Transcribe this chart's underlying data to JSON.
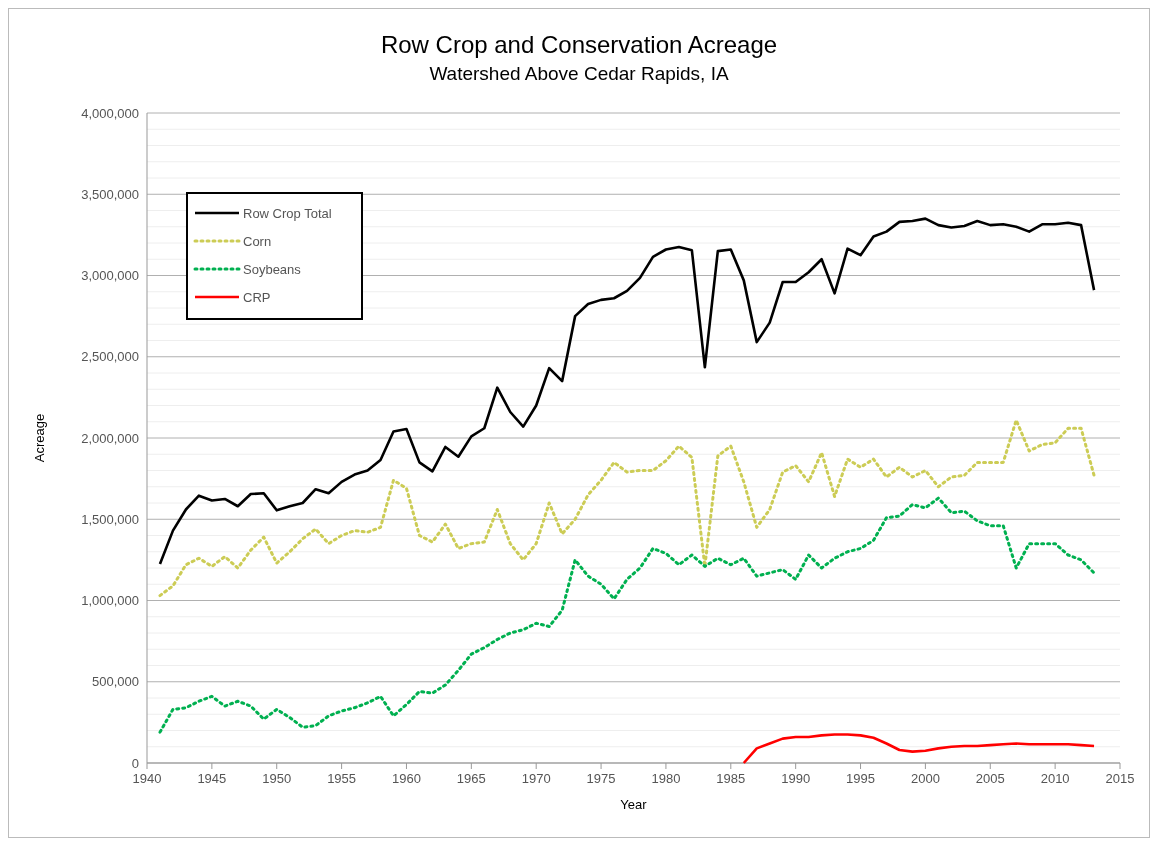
{
  "chart_data": {
    "type": "line",
    "title": "Row Crop and Conservation Acreage",
    "subtitle": "Watershed Above Cedar Rapids, IA",
    "xlabel": "Year",
    "ylabel": "Acreage",
    "x": [
      1941,
      1942,
      1943,
      1944,
      1945,
      1946,
      1947,
      1948,
      1949,
      1950,
      1951,
      1952,
      1953,
      1954,
      1955,
      1956,
      1957,
      1958,
      1959,
      1960,
      1961,
      1962,
      1963,
      1964,
      1965,
      1966,
      1967,
      1968,
      1969,
      1970,
      1971,
      1972,
      1973,
      1974,
      1975,
      1976,
      1977,
      1978,
      1979,
      1980,
      1981,
      1982,
      1983,
      1984,
      1985,
      1986,
      1987,
      1988,
      1989,
      1990,
      1991,
      1992,
      1993,
      1994,
      1995,
      1996,
      1997,
      1998,
      1999,
      2000,
      2001,
      2002,
      2003,
      2004,
      2005,
      2006,
      2007,
      2008,
      2009,
      2010,
      2011,
      2012,
      2013
    ],
    "series": [
      {
        "name": "Row Crop Total",
        "color": "#000000",
        "line_style": "solid",
        "values": [
          1225000,
          1430000,
          1560000,
          1645000,
          1615000,
          1625000,
          1580000,
          1655000,
          1660000,
          1555000,
          1580000,
          1600000,
          1685000,
          1660000,
          1730000,
          1775000,
          1800000,
          1865000,
          2040000,
          2055000,
          1850000,
          1795000,
          1945000,
          1885000,
          2010000,
          2060000,
          2310000,
          2160000,
          2070000,
          2200000,
          2430000,
          2350000,
          2750000,
          2825000,
          2850000,
          2860000,
          2905000,
          2985000,
          3115000,
          3160000,
          3175000,
          3155000,
          2435000,
          3150000,
          3160000,
          2970000,
          2590000,
          2710000,
          2960000,
          2960000,
          3020000,
          3100000,
          2890000,
          3165000,
          3125000,
          3240000,
          3270000,
          3330000,
          3335000,
          3350000,
          3310000,
          3295000,
          3305000,
          3335000,
          3310000,
          3315000,
          3300000,
          3270000,
          3315000,
          3315000,
          3325000,
          3310000,
          2910000
        ]
      },
      {
        "name": "Corn",
        "color": "#cccc55",
        "line_style": "dotted",
        "values": [
          1030000,
          1090000,
          1220000,
          1260000,
          1210000,
          1270000,
          1200000,
          1310000,
          1390000,
          1230000,
          1300000,
          1380000,
          1440000,
          1350000,
          1400000,
          1430000,
          1420000,
          1450000,
          1740000,
          1690000,
          1400000,
          1360000,
          1470000,
          1320000,
          1350000,
          1360000,
          1560000,
          1350000,
          1250000,
          1350000,
          1600000,
          1410000,
          1500000,
          1650000,
          1740000,
          1850000,
          1790000,
          1800000,
          1800000,
          1860000,
          1950000,
          1880000,
          1210000,
          1890000,
          1950000,
          1730000,
          1450000,
          1560000,
          1790000,
          1830000,
          1730000,
          1910000,
          1640000,
          1870000,
          1820000,
          1870000,
          1760000,
          1820000,
          1760000,
          1800000,
          1700000,
          1760000,
          1770000,
          1850000,
          1850000,
          1850000,
          2110000,
          1920000,
          1960000,
          1970000,
          2060000,
          2060000,
          1770000
        ]
      },
      {
        "name": "Soybeans",
        "color": "#00b050",
        "line_style": "dotted",
        "values": [
          190000,
          330000,
          340000,
          380000,
          410000,
          350000,
          380000,
          350000,
          270000,
          330000,
          280000,
          220000,
          230000,
          290000,
          320000,
          340000,
          370000,
          410000,
          290000,
          360000,
          440000,
          430000,
          480000,
          570000,
          670000,
          710000,
          760000,
          800000,
          820000,
          860000,
          840000,
          940000,
          1250000,
          1150000,
          1100000,
          1010000,
          1130000,
          1200000,
          1320000,
          1290000,
          1220000,
          1280000,
          1210000,
          1260000,
          1220000,
          1260000,
          1150000,
          1170000,
          1190000,
          1130000,
          1280000,
          1200000,
          1260000,
          1300000,
          1320000,
          1370000,
          1510000,
          1520000,
          1590000,
          1570000,
          1630000,
          1540000,
          1550000,
          1490000,
          1460000,
          1460000,
          1200000,
          1350000,
          1350000,
          1350000,
          1280000,
          1250000,
          1170000
        ]
      },
      {
        "name": "CRP",
        "color": "#ff0000",
        "line_style": "solid",
        "x": [
          1986,
          1987,
          1988,
          1989,
          1990,
          1991,
          1992,
          1993,
          1994,
          1995,
          1996,
          1997,
          1998,
          1999,
          2000,
          2001,
          2002,
          2003,
          2004,
          2005,
          2006,
          2007,
          2008,
          2009,
          2010,
          2011,
          2012,
          2013
        ],
        "values": [
          0,
          90000,
          120000,
          150000,
          160000,
          160000,
          170000,
          175000,
          175000,
          170000,
          155000,
          120000,
          80000,
          70000,
          75000,
          90000,
          100000,
          105000,
          105000,
          110000,
          115000,
          120000,
          115000,
          115000,
          115000,
          115000,
          110000,
          105000
        ]
      }
    ],
    "xlim": [
      1940,
      2015
    ],
    "xticks": [
      1940,
      1945,
      1950,
      1955,
      1960,
      1965,
      1970,
      1975,
      1980,
      1985,
      1990,
      1995,
      2000,
      2005,
      2010,
      2015
    ],
    "ylim": [
      0,
      4000000
    ],
    "yticks": [
      {
        "value": 0,
        "label": "0"
      },
      {
        "value": 100000,
        "label": null
      },
      {
        "value": 200000,
        "label": null
      },
      {
        "value": 300000,
        "label": null
      },
      {
        "value": 400000,
        "label": null
      },
      {
        "value": 500000,
        "label": "500,000"
      },
      {
        "value": 600000,
        "label": null
      },
      {
        "value": 700000,
        "label": null
      },
      {
        "value": 800000,
        "label": null
      },
      {
        "value": 900000,
        "label": null
      },
      {
        "value": 1000000,
        "label": "1,000,000"
      },
      {
        "value": 1100000,
        "label": null
      },
      {
        "value": 1200000,
        "label": null
      },
      {
        "value": 1300000,
        "label": null
      },
      {
        "value": 1400000,
        "label": null
      },
      {
        "value": 1500000,
        "label": "1,500,000"
      },
      {
        "value": 1600000,
        "label": null
      },
      {
        "value": 1700000,
        "label": null
      },
      {
        "value": 1800000,
        "label": null
      },
      {
        "value": 1900000,
        "label": null
      },
      {
        "value": 2000000,
        "label": "2,000,000"
      },
      {
        "value": 2100000,
        "label": null
      },
      {
        "value": 2200000,
        "label": null
      },
      {
        "value": 2300000,
        "label": null
      },
      {
        "value": 2400000,
        "label": null
      },
      {
        "value": 2500000,
        "label": "2,500,000"
      },
      {
        "value": 2600000,
        "label": null
      },
      {
        "value": 2700000,
        "label": null
      },
      {
        "value": 2800000,
        "label": null
      },
      {
        "value": 2900000,
        "label": null
      },
      {
        "value": 3000000,
        "label": "3,000,000"
      },
      {
        "value": 3100000,
        "label": null
      },
      {
        "value": 3200000,
        "label": null
      },
      {
        "value": 3300000,
        "label": null
      },
      {
        "value": 3400000,
        "label": null
      },
      {
        "value": 3500000,
        "label": "3,500,000"
      },
      {
        "value": 3600000,
        "label": null
      },
      {
        "value": 3700000,
        "label": null
      },
      {
        "value": 3800000,
        "label": null
      },
      {
        "value": 3900000,
        "label": null
      },
      {
        "value": 4000000,
        "label": "4,000,000"
      }
    ],
    "grid": "y",
    "legend": "top left"
  }
}
